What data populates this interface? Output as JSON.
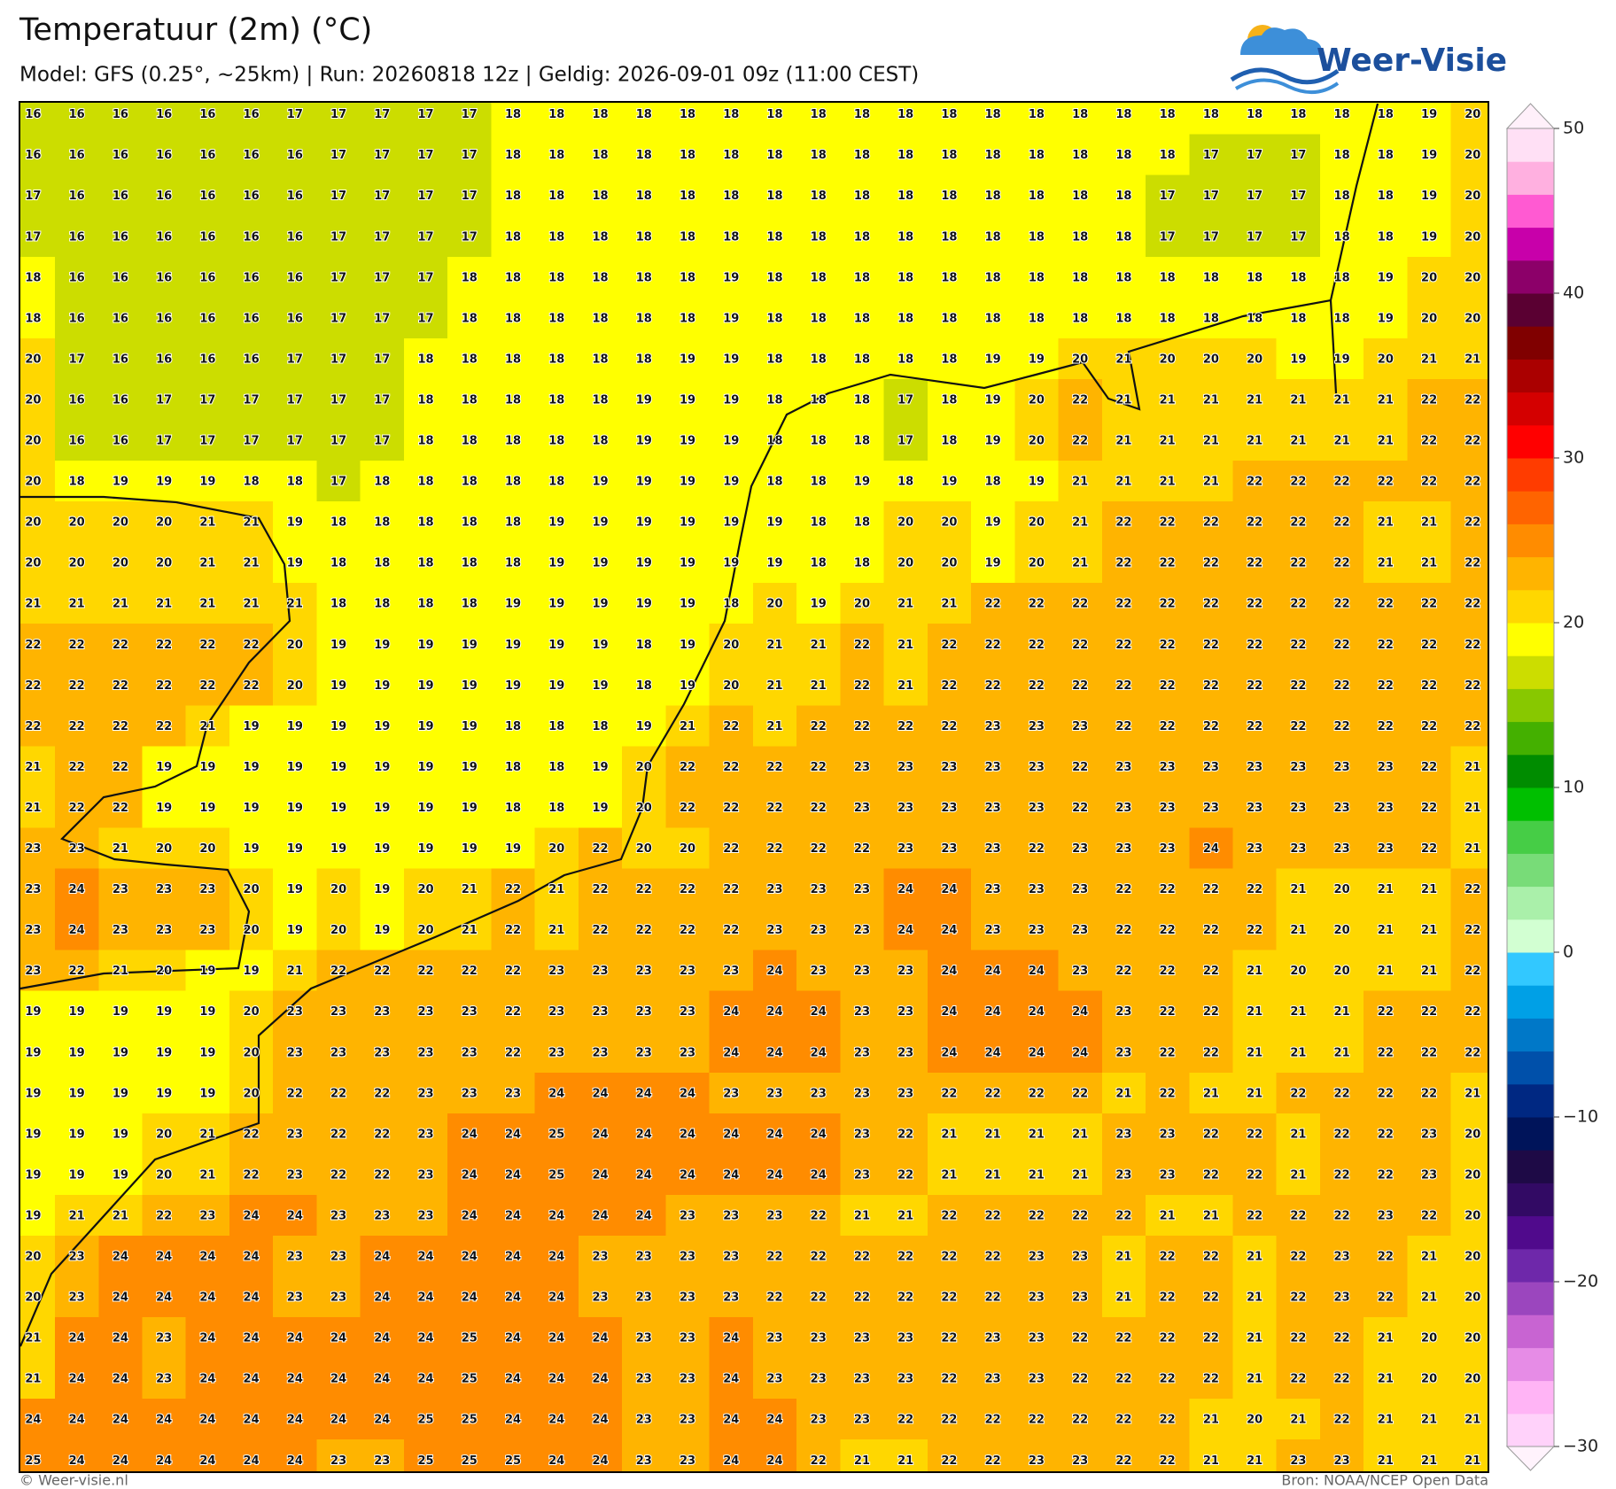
{
  "header": {
    "title": "Temperatuur (2m) (°C)",
    "subtitle": "Model: GFS (0.25°, ~25km)  |  Run: 20260818 12z  |  Geldig: 2026-09-01 09z (11:00 CEST)"
  },
  "logo": "Weer-Visie",
  "map": {
    "grid": [
      [
        16,
        16,
        16,
        16,
        16,
        16,
        17,
        17,
        17,
        17,
        17,
        18,
        18,
        18,
        18,
        18,
        18,
        18,
        18,
        18,
        18,
        18,
        18,
        18,
        18,
        18,
        18,
        18,
        18,
        18,
        18,
        18,
        19,
        20
      ],
      [
        16,
        16,
        16,
        16,
        16,
        16,
        16,
        17,
        17,
        17,
        17,
        18,
        18,
        18,
        18,
        18,
        18,
        18,
        18,
        18,
        18,
        18,
        18,
        18,
        18,
        18,
        18,
        17,
        17,
        17,
        18,
        18,
        19,
        20
      ],
      [
        17,
        16,
        16,
        16,
        16,
        16,
        16,
        17,
        17,
        17,
        17,
        18,
        18,
        18,
        18,
        18,
        18,
        18,
        18,
        18,
        18,
        18,
        18,
        18,
        18,
        18,
        17,
        17,
        17,
        17,
        18,
        18,
        19,
        20
      ],
      [
        17,
        16,
        16,
        16,
        16,
        16,
        16,
        17,
        17,
        17,
        17,
        18,
        18,
        18,
        18,
        18,
        18,
        18,
        18,
        18,
        18,
        18,
        18,
        18,
        18,
        18,
        17,
        17,
        17,
        17,
        18,
        18,
        19,
        20
      ],
      [
        18,
        16,
        16,
        16,
        16,
        16,
        16,
        17,
        17,
        17,
        18,
        18,
        18,
        18,
        18,
        18,
        19,
        18,
        18,
        18,
        18,
        18,
        18,
        18,
        18,
        18,
        18,
        18,
        18,
        18,
        18,
        19,
        20,
        20
      ],
      [
        18,
        16,
        16,
        16,
        16,
        16,
        16,
        17,
        17,
        17,
        18,
        18,
        18,
        18,
        18,
        18,
        19,
        18,
        18,
        18,
        18,
        18,
        18,
        18,
        18,
        18,
        18,
        18,
        18,
        18,
        18,
        19,
        20,
        20
      ],
      [
        20,
        17,
        16,
        16,
        16,
        16,
        17,
        17,
        17,
        18,
        18,
        18,
        18,
        18,
        18,
        19,
        19,
        18,
        18,
        18,
        18,
        18,
        19,
        19,
        20,
        21,
        20,
        20,
        20,
        19,
        19,
        20,
        21,
        21
      ],
      [
        20,
        16,
        16,
        17,
        17,
        17,
        17,
        17,
        17,
        18,
        18,
        18,
        18,
        18,
        19,
        19,
        19,
        18,
        18,
        18,
        17,
        18,
        19,
        20,
        22,
        21,
        21,
        21,
        21,
        21,
        21,
        21,
        22,
        22
      ],
      [
        20,
        16,
        16,
        17,
        17,
        17,
        17,
        17,
        17,
        18,
        18,
        18,
        18,
        18,
        19,
        19,
        19,
        18,
        18,
        18,
        17,
        18,
        19,
        20,
        22,
        21,
        21,
        21,
        21,
        21,
        21,
        21,
        22,
        22
      ],
      [
        20,
        18,
        19,
        19,
        19,
        18,
        18,
        17,
        18,
        18,
        18,
        18,
        18,
        19,
        19,
        19,
        19,
        18,
        18,
        19,
        18,
        19,
        18,
        19,
        21,
        21,
        21,
        21,
        22,
        22,
        22,
        22,
        22,
        22
      ],
      [
        20,
        20,
        20,
        20,
        21,
        21,
        19,
        18,
        18,
        18,
        18,
        18,
        19,
        19,
        19,
        19,
        19,
        19,
        18,
        18,
        20,
        20,
        19,
        20,
        21,
        22,
        22,
        22,
        22,
        22,
        22,
        21,
        21,
        22
      ],
      [
        20,
        20,
        20,
        20,
        21,
        21,
        19,
        18,
        18,
        18,
        18,
        18,
        19,
        19,
        19,
        19,
        19,
        19,
        18,
        18,
        20,
        20,
        19,
        20,
        21,
        22,
        22,
        22,
        22,
        22,
        22,
        21,
        21,
        22
      ],
      [
        21,
        21,
        21,
        21,
        21,
        21,
        21,
        18,
        18,
        18,
        18,
        19,
        19,
        19,
        19,
        19,
        18,
        20,
        19,
        20,
        21,
        21,
        22,
        22,
        22,
        22,
        22,
        22,
        22,
        22,
        22,
        22,
        22,
        22
      ],
      [
        22,
        22,
        22,
        22,
        22,
        22,
        20,
        19,
        19,
        19,
        19,
        19,
        19,
        19,
        18,
        19,
        20,
        21,
        21,
        22,
        21,
        22,
        22,
        22,
        22,
        22,
        22,
        22,
        22,
        22,
        22,
        22,
        22,
        22
      ],
      [
        22,
        22,
        22,
        22,
        22,
        22,
        20,
        19,
        19,
        19,
        19,
        19,
        19,
        19,
        18,
        19,
        20,
        21,
        21,
        22,
        21,
        22,
        22,
        22,
        22,
        22,
        22,
        22,
        22,
        22,
        22,
        22,
        22,
        22
      ],
      [
        22,
        22,
        22,
        22,
        21,
        19,
        19,
        19,
        19,
        19,
        19,
        18,
        18,
        18,
        19,
        21,
        22,
        21,
        22,
        22,
        22,
        22,
        23,
        23,
        23,
        22,
        22,
        22,
        22,
        22,
        22,
        22,
        22,
        22
      ],
      [
        21,
        22,
        22,
        19,
        19,
        19,
        19,
        19,
        19,
        19,
        19,
        18,
        18,
        19,
        20,
        22,
        22,
        22,
        22,
        23,
        23,
        23,
        23,
        23,
        22,
        23,
        23,
        23,
        23,
        23,
        23,
        23,
        22,
        21
      ],
      [
        21,
        22,
        22,
        19,
        19,
        19,
        19,
        19,
        19,
        19,
        19,
        18,
        18,
        19,
        20,
        22,
        22,
        22,
        22,
        23,
        23,
        23,
        23,
        23,
        22,
        23,
        23,
        23,
        23,
        23,
        23,
        23,
        22,
        21
      ],
      [
        23,
        23,
        21,
        20,
        20,
        19,
        19,
        19,
        19,
        19,
        19,
        19,
        20,
        22,
        20,
        20,
        22,
        22,
        22,
        22,
        23,
        23,
        23,
        22,
        23,
        23,
        23,
        24,
        23,
        23,
        23,
        23,
        22,
        21
      ],
      [
        23,
        24,
        23,
        23,
        23,
        20,
        19,
        20,
        19,
        20,
        21,
        22,
        21,
        22,
        22,
        22,
        22,
        23,
        23,
        23,
        24,
        24,
        23,
        23,
        23,
        22,
        22,
        22,
        22,
        21,
        20,
        21,
        21,
        22
      ],
      [
        23,
        24,
        23,
        23,
        23,
        20,
        19,
        20,
        19,
        20,
        21,
        22,
        21,
        22,
        22,
        22,
        22,
        23,
        23,
        23,
        24,
        24,
        23,
        23,
        23,
        22,
        22,
        22,
        22,
        21,
        20,
        21,
        21,
        22
      ],
      [
        23,
        22,
        21,
        20,
        19,
        19,
        21,
        22,
        22,
        22,
        22,
        22,
        23,
        23,
        23,
        23,
        23,
        24,
        23,
        23,
        23,
        24,
        24,
        24,
        23,
        22,
        22,
        22,
        21,
        20,
        20,
        21,
        21,
        22
      ],
      [
        19,
        19,
        19,
        19,
        19,
        20,
        23,
        23,
        23,
        23,
        23,
        22,
        23,
        23,
        23,
        23,
        24,
        24,
        24,
        23,
        23,
        24,
        24,
        24,
        24,
        23,
        22,
        22,
        21,
        21,
        21,
        22,
        22,
        22
      ],
      [
        19,
        19,
        19,
        19,
        19,
        20,
        23,
        23,
        23,
        23,
        23,
        22,
        23,
        23,
        23,
        23,
        24,
        24,
        24,
        23,
        23,
        24,
        24,
        24,
        24,
        23,
        22,
        22,
        21,
        21,
        21,
        22,
        22,
        22
      ],
      [
        19,
        19,
        19,
        19,
        19,
        20,
        22,
        22,
        22,
        23,
        23,
        23,
        24,
        24,
        24,
        24,
        23,
        23,
        23,
        23,
        23,
        22,
        22,
        22,
        22,
        21,
        22,
        21,
        21,
        22,
        22,
        22,
        22,
        21
      ],
      [
        19,
        19,
        19,
        20,
        21,
        22,
        23,
        22,
        22,
        23,
        24,
        24,
        25,
        24,
        24,
        24,
        24,
        24,
        24,
        23,
        22,
        21,
        21,
        21,
        21,
        23,
        23,
        22,
        22,
        21,
        22,
        22,
        23,
        20
      ],
      [
        19,
        19,
        19,
        20,
        21,
        22,
        23,
        22,
        22,
        23,
        24,
        24,
        25,
        24,
        24,
        24,
        24,
        24,
        24,
        23,
        22,
        21,
        21,
        21,
        21,
        23,
        23,
        22,
        22,
        21,
        22,
        22,
        23,
        20
      ],
      [
        19,
        21,
        21,
        22,
        23,
        24,
        24,
        23,
        23,
        23,
        24,
        24,
        24,
        24,
        24,
        23,
        23,
        23,
        22,
        21,
        21,
        22,
        22,
        22,
        22,
        22,
        21,
        21,
        22,
        22,
        22,
        23,
        22,
        20
      ],
      [
        20,
        23,
        24,
        24,
        24,
        24,
        23,
        23,
        24,
        24,
        24,
        24,
        24,
        23,
        23,
        23,
        23,
        22,
        22,
        22,
        22,
        22,
        22,
        23,
        23,
        21,
        22,
        22,
        21,
        22,
        23,
        22,
        21,
        20
      ],
      [
        20,
        23,
        24,
        24,
        24,
        24,
        23,
        23,
        24,
        24,
        24,
        24,
        24,
        23,
        23,
        23,
        23,
        22,
        22,
        22,
        22,
        22,
        22,
        23,
        23,
        21,
        22,
        22,
        21,
        22,
        23,
        22,
        21,
        20
      ],
      [
        21,
        24,
        24,
        23,
        24,
        24,
        24,
        24,
        24,
        24,
        25,
        24,
        24,
        24,
        23,
        23,
        24,
        23,
        23,
        23,
        23,
        22,
        23,
        23,
        22,
        22,
        22,
        22,
        21,
        22,
        22,
        21,
        20,
        20
      ],
      [
        21,
        24,
        24,
        23,
        24,
        24,
        24,
        24,
        24,
        24,
        25,
        24,
        24,
        24,
        23,
        23,
        24,
        23,
        23,
        23,
        23,
        22,
        23,
        23,
        22,
        22,
        22,
        22,
        21,
        22,
        22,
        21,
        20,
        20
      ],
      [
        24,
        24,
        24,
        24,
        24,
        24,
        24,
        24,
        24,
        25,
        25,
        24,
        24,
        24,
        23,
        23,
        24,
        24,
        23,
        23,
        22,
        22,
        22,
        22,
        22,
        22,
        22,
        21,
        20,
        21,
        22,
        21,
        21,
        21
      ],
      [
        25,
        24,
        24,
        24,
        24,
        24,
        24,
        23,
        23,
        25,
        25,
        25,
        24,
        24,
        23,
        23,
        24,
        24,
        22,
        21,
        21,
        22,
        22,
        23,
        23,
        22,
        22,
        21,
        21,
        23,
        23,
        21,
        21,
        21
      ]
    ]
  },
  "colorbar": {
    "lim": [
      -30,
      50
    ],
    "colors": [
      "#ffd2fa",
      "#ffb4f5",
      "#e68ce6",
      "#c864d2",
      "#9b46be",
      "#6e28aa",
      "#500a8c",
      "#320a64",
      "#1e0a46",
      "#00145a",
      "#002882",
      "#0050aa",
      "#0078c8",
      "#00a0e6",
      "#32c8ff",
      "#d2ffd2",
      "#aaf0aa",
      "#78dc78",
      "#46cd46",
      "#00bf00",
      "#008c00",
      "#44b000",
      "#88c800",
      "#ccdd00",
      "#ffff00",
      "#ffd700",
      "#ffb400",
      "#ff8c00",
      "#ff6400",
      "#ff3c00",
      "#ff0000",
      "#d40000",
      "#aa0000",
      "#800000",
      "#5a0032",
      "#8c0069",
      "#c800aa",
      "#ff5ad2",
      "#ffb0e0",
      "#ffe0f5"
    ],
    "under_color": "#fff3fc",
    "over_color": "#fff0fa",
    "ticks": [
      {
        "value": -30,
        "label": "−30"
      },
      {
        "value": -20,
        "label": "−20"
      },
      {
        "value": -10,
        "label": "−10"
      },
      0,
      10,
      20,
      30,
      40,
      50
    ]
  },
  "footer": {
    "left": "© Weer-visie.nl",
    "right": "Bron: NOAA/NCEP Open Data"
  }
}
